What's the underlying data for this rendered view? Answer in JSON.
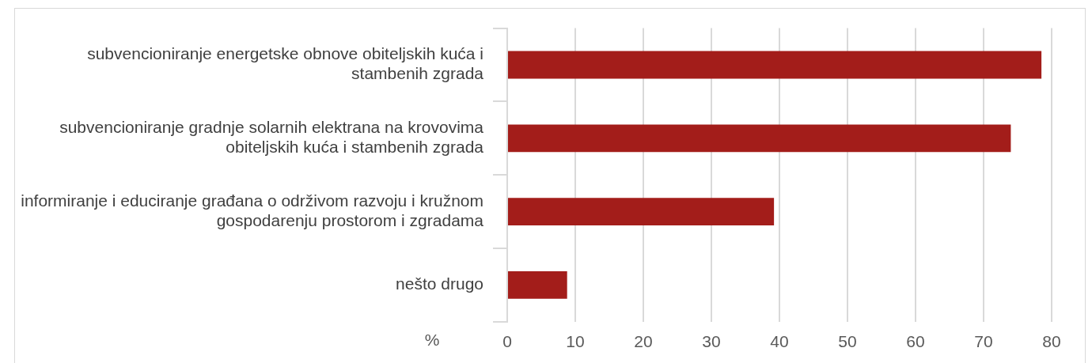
{
  "chart_data": {
    "type": "bar",
    "orientation": "horizontal",
    "xlabel": "%",
    "categories": [
      "subvencioniranje energetske obnove obiteljskih kuća i stambenih zgrada",
      "subvencioniranje gradnje solarnih elektrana na krovovima obiteljskih kuća i stambenih zgrada",
      "informiranje i educiranje građana o održivom razvoju i kružnom gospodarenju prostorom i zgradama",
      "nešto drugo"
    ],
    "values": [
      78.5,
      74.0,
      39.2,
      8.8
    ],
    "color": "#a31d1a",
    "xlim": [
      0,
      80
    ],
    "xticks": [
      0,
      10,
      20,
      30,
      40,
      50,
      60,
      70,
      80
    ],
    "grid": "x",
    "legend": false
  }
}
